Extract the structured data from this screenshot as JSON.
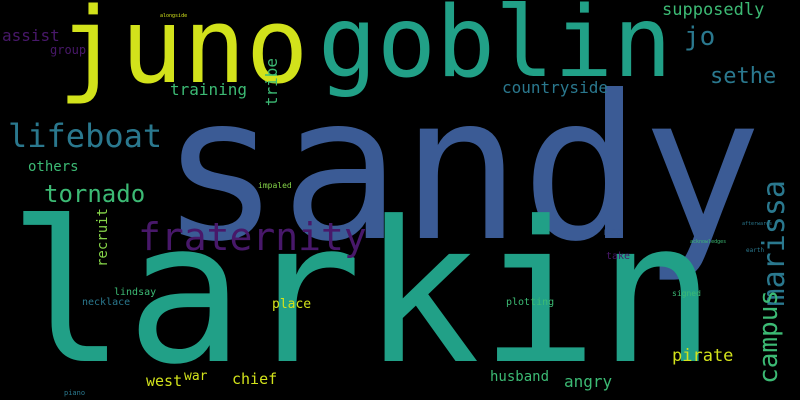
{
  "colors": {
    "background": "#000000",
    "blue": "#3b5b95",
    "teal": "#21a087",
    "green": "#3cba74",
    "yellow": "#d2e21b",
    "purple": "#48186a",
    "cyan": "#2a788e",
    "lime": "#86d549"
  },
  "words": {
    "sandy": "sandy",
    "larkin": "larkin",
    "juno": "juno",
    "goblin": "goblin",
    "lifeboat": "lifeboat",
    "fraternity": "fraternity",
    "tornado": "tornado",
    "marissa": "marissa",
    "campus": "campus",
    "supposedly": "supposedly",
    "jo": "jo",
    "sethe": "sethe",
    "countryside": "countryside",
    "training": "training",
    "tribe": "tribe",
    "assist": "assist",
    "group": "group",
    "others": "others",
    "recruit": "recruit",
    "pirate": "pirate",
    "chief": "chief",
    "west": "west",
    "war": "war",
    "husband": "husband",
    "angry": "angry",
    "place": "place",
    "lindsay": "lindsay",
    "necklace": "necklace",
    "plotting": "plotting",
    "take": "take",
    "meg": "meg",
    "impaled": "impaled",
    "signed": "signed",
    "piano": "piano",
    "alongside": "alongside",
    "earth": "earth",
    "acknowledges": "acknowledges",
    "afterwards": "afterwards"
  }
}
